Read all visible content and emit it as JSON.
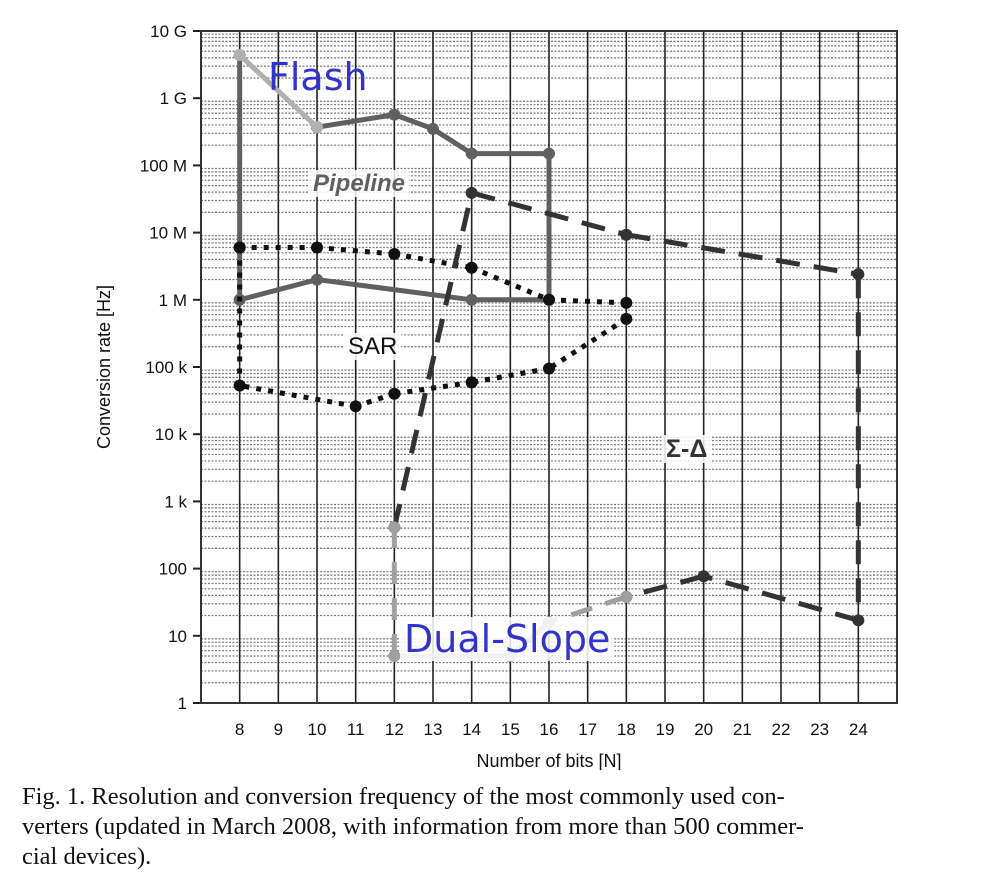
{
  "chart_data": {
    "type": "line",
    "title": "",
    "xlabel": "Number of bits [N]",
    "ylabel": "Conversion rate [Hz]",
    "xlim": [
      7,
      25
    ],
    "ylim": [
      1,
      10000000000
    ],
    "yscale": "log",
    "grid": true,
    "x_ticks": [
      8,
      9,
      10,
      11,
      12,
      13,
      14,
      15,
      16,
      17,
      18,
      19,
      20,
      21,
      22,
      23,
      24
    ],
    "y_ticks": [
      {
        "value": 10000000000,
        "label": "10 G"
      },
      {
        "value": 1000000000,
        "label": "1 G"
      },
      {
        "value": 100000000,
        "label": "100 M"
      },
      {
        "value": 10000000,
        "label": "10 M"
      },
      {
        "value": 1000000,
        "label": "1 M"
      },
      {
        "value": 100000,
        "label": "100 k"
      },
      {
        "value": 10000,
        "label": "10 k"
      },
      {
        "value": 1000,
        "label": "1 k"
      },
      {
        "value": 100,
        "label": "100"
      },
      {
        "value": 10,
        "label": "10"
      },
      {
        "value": 1,
        "label": "1"
      }
    ],
    "series": [
      {
        "name": "Pipeline",
        "style": "solid",
        "color": "#606060",
        "points": [
          [
            10,
            370000000
          ],
          [
            12,
            570000000
          ],
          [
            13,
            350000000
          ],
          [
            14,
            150000000
          ],
          [
            16,
            150000000
          ],
          [
            16,
            1000000
          ],
          [
            14,
            1000000
          ],
          [
            10,
            2000000
          ],
          [
            8,
            1000000
          ],
          [
            8,
            4400000000
          ]
        ]
      },
      {
        "name": "Flash",
        "style": "solid",
        "color": "#b0b0b0",
        "points": [
          [
            8,
            4400000000
          ],
          [
            10,
            370000000
          ]
        ]
      },
      {
        "name": "SAR",
        "style": "dotted",
        "color": "#111111",
        "points": [
          [
            8,
            6000000
          ],
          [
            10,
            6000000
          ],
          [
            12,
            4800000
          ],
          [
            14,
            3000000
          ],
          [
            16,
            1000000
          ],
          [
            18,
            900000
          ],
          [
            18,
            520000
          ],
          [
            16,
            95000
          ],
          [
            14,
            59000
          ],
          [
            12,
            40000
          ],
          [
            11,
            26000
          ],
          [
            8,
            53000
          ],
          [
            8,
            6000000
          ]
        ]
      },
      {
        "name": "Σ-Δ",
        "style": "dashed",
        "color": "#333333",
        "points": [
          [
            12,
            410
          ],
          [
            14,
            39000000
          ],
          [
            18,
            9300000
          ],
          [
            24,
            2400000
          ],
          [
            24,
            17
          ],
          [
            20,
            77
          ],
          [
            18,
            38
          ]
        ]
      },
      {
        "name": "Dual-Slope",
        "style": "mixed",
        "color": "#a0a0a0",
        "points": [
          [
            18,
            38
          ],
          [
            16,
            16
          ],
          [
            15,
            5
          ],
          [
            12,
            5
          ],
          [
            12,
            410
          ]
        ]
      }
    ],
    "annotations": [
      {
        "text": "Flash",
        "color": "#3333cc"
      },
      {
        "text": "Pipeline",
        "color": "#606060"
      },
      {
        "text": "SAR",
        "color": "#111111"
      },
      {
        "text": "Σ-Δ",
        "color": "#333333"
      },
      {
        "text": "Dual-Slope",
        "color": "#3333cc"
      }
    ]
  },
  "caption": {
    "lines": [
      "Fig. 1.   Resolution and conversion frequency of the most commonly used con-",
      "verters (updated in March 2008, with information from more than 500 commer-",
      "cial devices)."
    ]
  }
}
